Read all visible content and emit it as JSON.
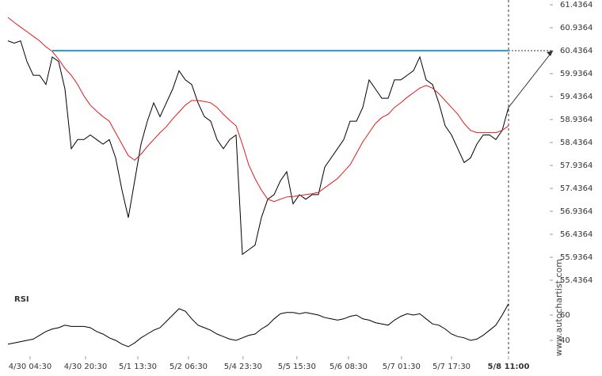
{
  "chart_data": {
    "type": "line",
    "watermark": "www.autochartist.com",
    "ylim": [
      55.4364,
      61.4364
    ],
    "yticks": [
      61.4364,
      60.9364,
      60.4364,
      59.9364,
      59.4364,
      58.9364,
      58.4364,
      57.9364,
      57.4364,
      56.9364,
      56.4364,
      55.9364,
      55.4364
    ],
    "xlim": [
      -0.25,
      79
    ],
    "xticks": [
      {
        "value": 3.5,
        "label": "4/30 04:30"
      },
      {
        "value": 12.25,
        "label": "4/30 20:30"
      },
      {
        "value": 20.5,
        "label": "5/1 13:30"
      },
      {
        "value": 28.5,
        "label": "5/2 06:30"
      },
      {
        "value": 37.1,
        "label": "5/4 23:30"
      },
      {
        "value": 45.6,
        "label": "5/5 15:30"
      },
      {
        "value": 53.75,
        "label": "5/6 08:30"
      },
      {
        "value": 62.1,
        "label": "5/7 01:30"
      },
      {
        "value": 70,
        "label": "5/7 17:30"
      },
      {
        "value": 79,
        "label": "5/8 11:00"
      }
    ],
    "series": [
      {
        "color": "#000000",
        "values": [
          60.65,
          60.6,
          60.65,
          60.2,
          59.9,
          59.9,
          59.7,
          60.3,
          60.2,
          59.6,
          58.3,
          58.5,
          58.5,
          58.6,
          58.5,
          58.4,
          58.5,
          58.1,
          57.4,
          56.8,
          57.6,
          58.4,
          58.9,
          59.3,
          59.0,
          59.3,
          59.6,
          60.0,
          59.8,
          59.7,
          59.3,
          59.0,
          58.9,
          58.5,
          58.3,
          58.5,
          58.6,
          56.0,
          56.1,
          56.2,
          56.8,
          57.2,
          57.3,
          57.6,
          57.8,
          57.1,
          57.3,
          57.2,
          57.3,
          57.3,
          57.9,
          58.1,
          58.3,
          58.5,
          58.9,
          58.9,
          59.2,
          59.8,
          59.6,
          59.4,
          59.4,
          59.8,
          59.8,
          59.9,
          60.0,
          60.3,
          59.8,
          59.7,
          59.3,
          58.8,
          58.6,
          58.3,
          58.0,
          58.1,
          58.4,
          58.6,
          58.6,
          58.5,
          58.7,
          59.2
        ]
      },
      {
        "color": "#e31a1c",
        "values": [
          61.16,
          61.05,
          60.95,
          60.85,
          60.75,
          60.65,
          60.52,
          60.42,
          60.25,
          60.05,
          59.9,
          59.7,
          59.45,
          59.25,
          59.12,
          59.0,
          58.9,
          58.65,
          58.4,
          58.15,
          58.05,
          58.18,
          58.35,
          58.5,
          58.65,
          58.78,
          58.95,
          59.1,
          59.25,
          59.35,
          59.35,
          59.33,
          59.3,
          59.2,
          59.05,
          58.92,
          58.8,
          58.4,
          57.95,
          57.65,
          57.4,
          57.2,
          57.15,
          57.2,
          57.25,
          57.26,
          57.28,
          57.3,
          57.32,
          57.35,
          57.45,
          57.55,
          57.65,
          57.8,
          57.95,
          58.2,
          58.45,
          58.65,
          58.85,
          58.98,
          59.05,
          59.2,
          59.3,
          59.42,
          59.52,
          59.62,
          59.68,
          59.62,
          59.5,
          59.35,
          59.2,
          59.05,
          58.85,
          58.7,
          58.65,
          58.65,
          58.65,
          58.65,
          58.7,
          58.8
        ]
      }
    ],
    "resistance": {
      "value": 60.4364,
      "start": 7,
      "color": "#29a3d6"
    },
    "rsi": {
      "label": "RSI",
      "color": "#000000",
      "ylim": [
        30,
        75
      ],
      "yticks": [
        60,
        40
      ],
      "values": [
        37,
        38,
        39,
        40,
        41,
        44,
        47,
        49,
        50,
        52,
        51,
        51,
        51,
        50,
        47,
        45,
        42,
        40,
        37,
        35,
        38,
        42,
        45,
        48,
        50,
        55,
        60,
        65,
        63,
        57,
        52,
        50,
        48,
        45,
        43,
        41,
        40,
        42,
        44,
        45,
        49,
        52,
        57,
        61,
        62,
        62,
        61,
        62,
        61,
        60,
        58,
        57,
        56,
        57,
        59,
        60,
        57,
        56,
        54,
        53,
        52,
        56,
        59,
        61,
        60,
        61,
        57,
        53,
        52,
        49,
        45,
        43,
        42,
        40,
        41,
        44,
        48,
        52,
        60,
        69
      ]
    }
  }
}
